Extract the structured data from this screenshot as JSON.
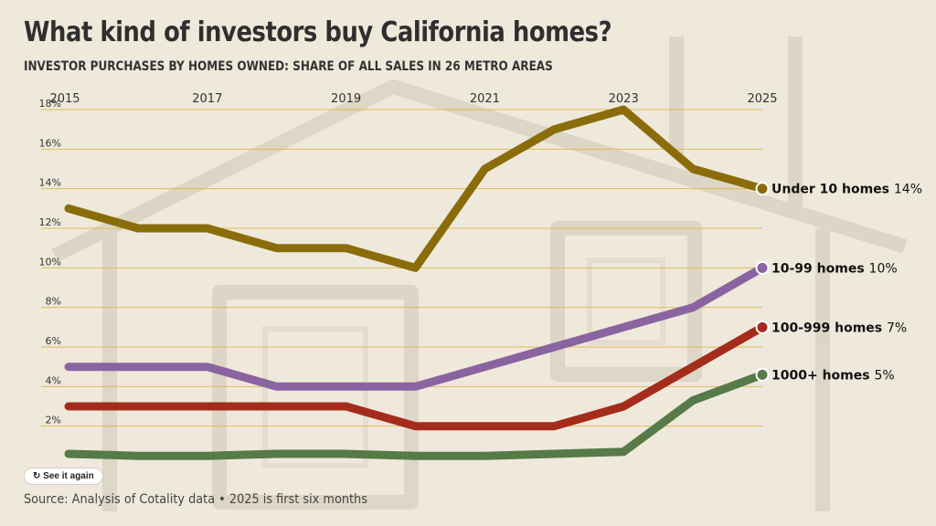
{
  "header": {
    "title": "What kind of investors buy California homes?",
    "subtitle": "INVESTOR PURCHASES BY HOMES OWNED: SHARE OF ALL SALES IN 26 METRO AREAS"
  },
  "controls": {
    "replay_label": "See it again",
    "replay_icon": "replay-icon"
  },
  "footer": {
    "source": "Source: Analysis of Cotality data • 2025 is first six months"
  },
  "colors": {
    "background": "#efe9dc",
    "grid": "#e0bb55",
    "under10": "#8a6d0a",
    "h10_99": "#8a64a0",
    "h100_999": "#a42c1c",
    "h1000plus": "#567a48"
  },
  "chart_data": {
    "type": "line",
    "title": "What kind of investors buy California homes?",
    "subtitle": "INVESTOR PURCHASES BY HOMES OWNED: SHARE OF ALL SALES IN 26 METRO AREAS",
    "xlabel": "",
    "ylabel": "",
    "x": [
      2015,
      2016,
      2017,
      2018,
      2019,
      2020,
      2021,
      2022,
      2023,
      2024,
      2025
    ],
    "xticks": [
      "2015",
      "2017",
      "2019",
      "2021",
      "2023",
      "2025"
    ],
    "xtick_values": [
      2015,
      2017,
      2019,
      2021,
      2023,
      2025
    ],
    "xlim": [
      2015,
      2025
    ],
    "yticks": [
      "2%",
      "4%",
      "6%",
      "8%",
      "10%",
      "12%",
      "14%",
      "16%",
      "18%"
    ],
    "ytick_values": [
      2,
      4,
      6,
      8,
      10,
      12,
      14,
      16,
      18
    ],
    "ylim": [
      0,
      18
    ],
    "grid": true,
    "legend": "direct labels at line ends",
    "series": [
      {
        "name": "Under 10 homes",
        "end_label": "14%",
        "color": "#8a6d0a",
        "values": [
          13,
          12,
          12,
          11,
          11,
          10,
          15,
          17,
          18,
          15,
          14
        ]
      },
      {
        "name": "10-99 homes",
        "end_label": "10%",
        "color": "#8a64a0",
        "values": [
          5,
          5,
          5,
          4,
          4,
          4,
          5,
          6,
          7,
          8,
          10
        ]
      },
      {
        "name": "100-999 homes",
        "end_label": "7%",
        "color": "#a42c1c",
        "values": [
          3,
          3,
          3,
          3,
          3,
          2,
          2,
          2,
          3,
          5,
          7
        ]
      },
      {
        "name": "1000+ homes",
        "end_label": "5%",
        "color": "#567a48",
        "values": [
          0.6,
          0.5,
          0.5,
          0.6,
          0.6,
          0.5,
          0.5,
          0.6,
          0.7,
          3.3,
          4.6
        ]
      }
    ]
  }
}
